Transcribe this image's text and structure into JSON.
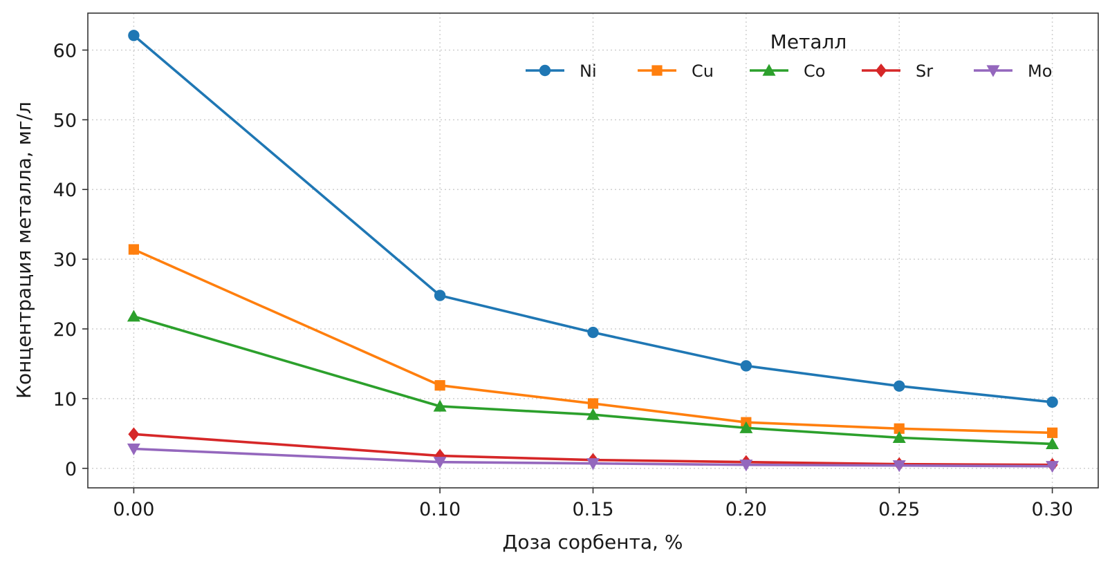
{
  "chart_data": {
    "type": "line",
    "xlabel": "Доза сорбента, %",
    "ylabel": "Концентрация металла, мг/л",
    "x": [
      0.0,
      0.1,
      0.15,
      0.2,
      0.25,
      0.3
    ],
    "x_tick_labels": [
      "0.00",
      "0.10",
      "0.15",
      "0.20",
      "0.25",
      "0.30"
    ],
    "xlim": [
      -0.015,
      0.315
    ],
    "ylim": [
      -2.8,
      65.3
    ],
    "y_ticks": [
      0,
      10,
      20,
      30,
      40,
      50,
      60
    ],
    "y_tick_labels": [
      "0",
      "10",
      "20",
      "30",
      "40",
      "50",
      "60"
    ],
    "grid": true,
    "legend": {
      "title": "Металл",
      "placement": "top-right",
      "columns": 5
    },
    "series": [
      {
        "name": "Ni",
        "color": "#1f77b4",
        "marker": "circle",
        "values": [
          62.1,
          24.8,
          19.5,
          14.7,
          11.8,
          9.5
        ]
      },
      {
        "name": "Cu",
        "color": "#ff7f0e",
        "marker": "square",
        "values": [
          31.4,
          11.9,
          9.3,
          6.6,
          5.7,
          5.1
        ]
      },
      {
        "name": "Co",
        "color": "#2ca02c",
        "marker": "triangle-up",
        "values": [
          21.8,
          8.9,
          7.7,
          5.8,
          4.4,
          3.5
        ]
      },
      {
        "name": "Sr",
        "color": "#d62728",
        "marker": "diamond",
        "values": [
          4.9,
          1.8,
          1.2,
          0.9,
          0.6,
          0.5
        ]
      },
      {
        "name": "Mo",
        "color": "#9467bd",
        "marker": "triangle-down",
        "values": [
          2.8,
          0.9,
          0.7,
          0.5,
          0.4,
          0.3
        ]
      }
    ]
  }
}
